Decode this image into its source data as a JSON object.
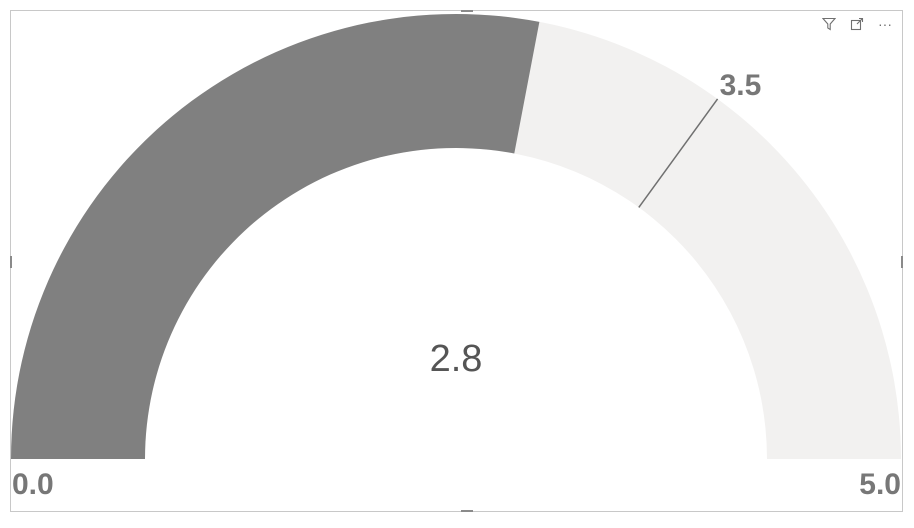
{
  "chart_data": {
    "type": "gauge",
    "value": 2.8,
    "value_label": "2.8",
    "min": 0,
    "max": 5,
    "min_label": "0.0",
    "max_label": "5.0",
    "target": 3.5,
    "target_label": "3.5",
    "colors": {
      "fill": "#808080",
      "track": "#f2f1f0",
      "target_line": "#707070",
      "value_text": "#555555",
      "axis_text": "#777777"
    }
  },
  "toolbar": {
    "icons": [
      "filter-icon",
      "focus-mode-icon",
      "more-options-icon"
    ],
    "more_label": "···"
  }
}
